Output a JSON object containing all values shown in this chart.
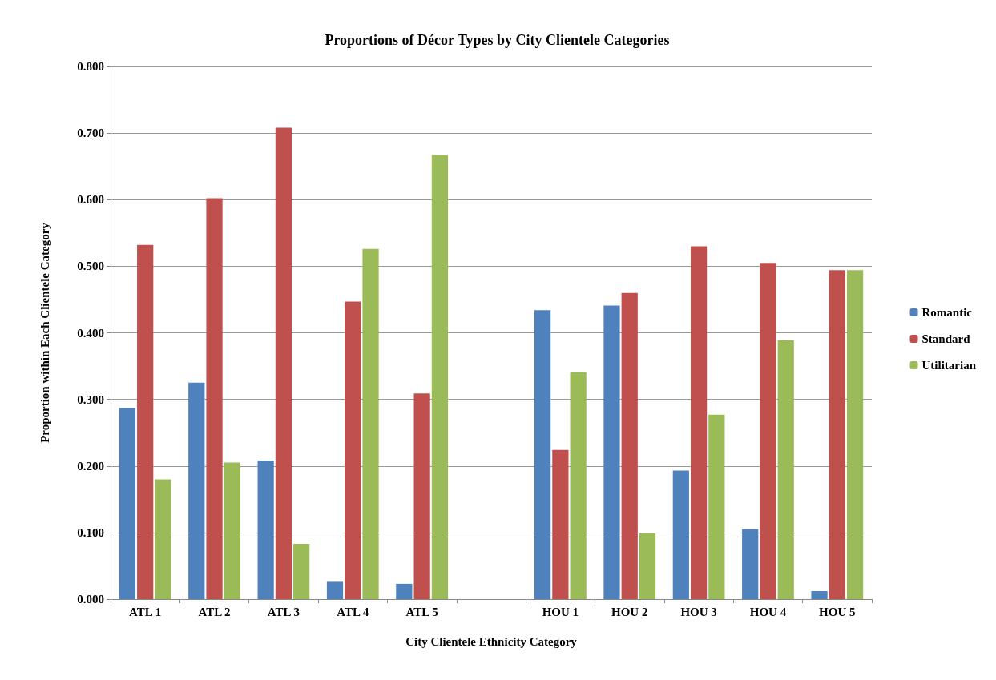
{
  "chart_data": {
    "type": "bar",
    "title": "Proportions of Décor Types by City Clientele Categories",
    "xlabel": "City Clientele Ethnicity Category",
    "ylabel": "Proportion within Each Clientele Category",
    "categories": [
      "ATL 1",
      "ATL 2",
      "ATL 3",
      "ATL 4",
      "ATL 5",
      null,
      "HOU 1",
      "HOU 2",
      "HOU 3",
      "HOU 4",
      "HOU 5"
    ],
    "series": [
      {
        "name": "Romantic",
        "color": "#4f81bd",
        "values": [
          0.287,
          0.325,
          0.208,
          0.026,
          0.023,
          null,
          0.434,
          0.441,
          0.193,
          0.105,
          0.012
        ]
      },
      {
        "name": "Standard",
        "color": "#c0504d",
        "values": [
          0.532,
          0.602,
          0.708,
          0.447,
          0.309,
          null,
          0.224,
          0.46,
          0.53,
          0.505,
          0.494
        ]
      },
      {
        "name": "Utilitarian",
        "color": "#9bbb59",
        "values": [
          0.18,
          0.205,
          0.083,
          0.526,
          0.667,
          null,
          0.341,
          0.099,
          0.277,
          0.389,
          0.494
        ]
      }
    ],
    "ylim": [
      0,
      0.8
    ],
    "yticks": [
      {
        "value": 0,
        "label": "0.000"
      },
      {
        "value": 0.1,
        "label": "0.100"
      },
      {
        "value": 0.2,
        "label": "0.200"
      },
      {
        "value": 0.3,
        "label": "0.300"
      },
      {
        "value": 0.4,
        "label": "0.400"
      },
      {
        "value": 0.5,
        "label": "0.500"
      },
      {
        "value": 0.6,
        "label": "0.600"
      },
      {
        "value": 0.7,
        "label": "0.700"
      },
      {
        "value": 0.8,
        "label": "0.800"
      }
    ],
    "grid": "y",
    "legend": "right"
  }
}
